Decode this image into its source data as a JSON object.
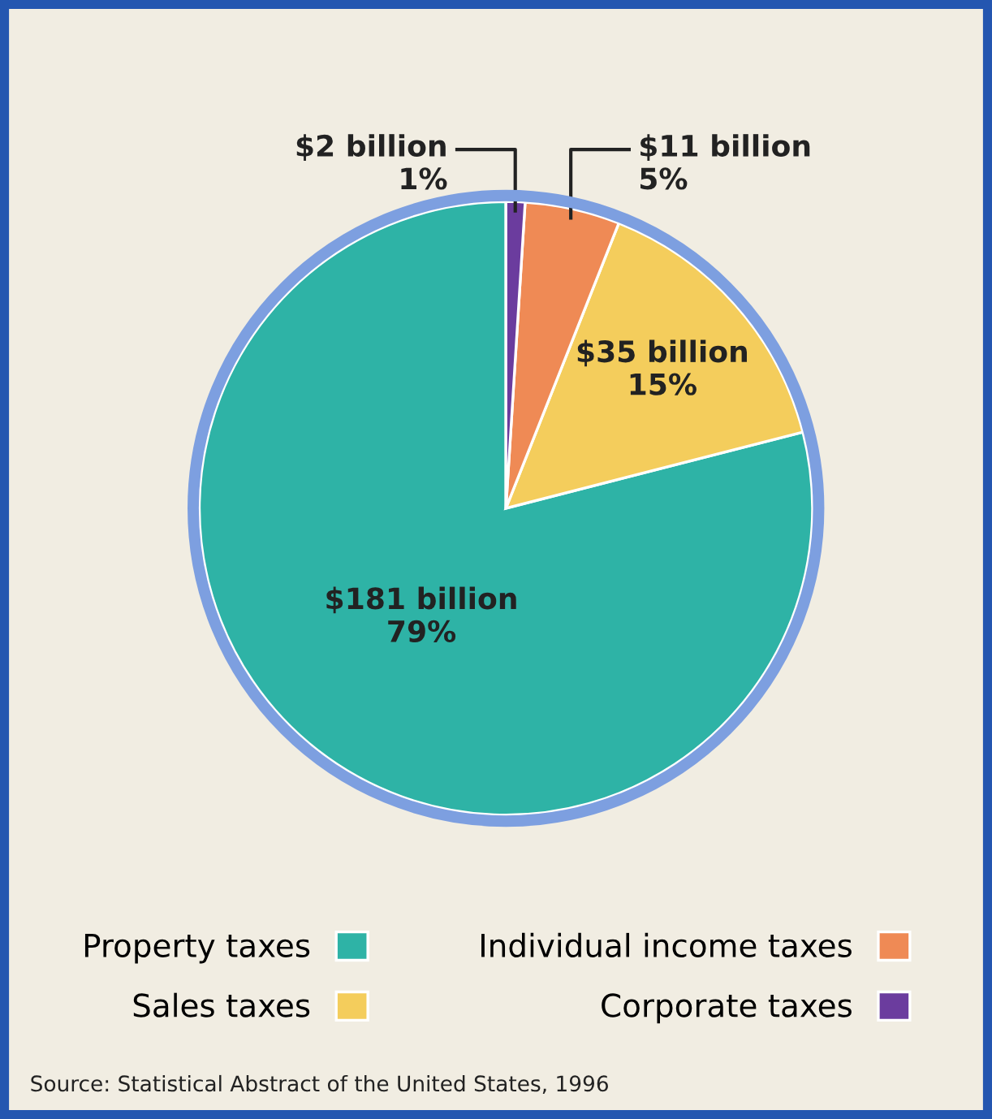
{
  "chart_data": {
    "type": "pie",
    "categories": [
      "Property taxes",
      "Sales taxes",
      "Individual income taxes",
      "Corporate taxes"
    ],
    "values": [
      79,
      15,
      5,
      1
    ],
    "colors": [
      "#2eb3a6",
      "#f4cd5c",
      "#ef8a55",
      "#6b3c9e"
    ],
    "value_labels": [
      "$181 billion\n79%",
      "$35 billion\n15%",
      "$11 billion\n5%",
      "$2 billion\n1%"
    ],
    "legend": "bottom",
    "annotations": [
      "Source: Statistical Abstract of the United States, 1996"
    ]
  }
}
